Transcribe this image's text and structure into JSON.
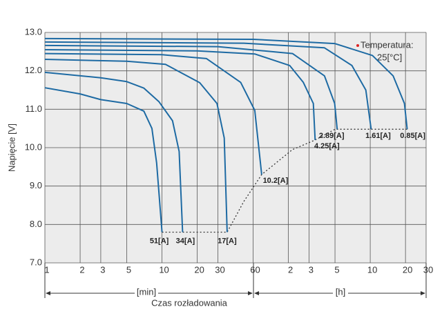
{
  "chart_data": {
    "type": "line",
    "x_label": "Czas rozładowania",
    "y_label": "Napięcie [V]",
    "x_unit_labels": [
      "[min]",
      "[h]"
    ],
    "annotations": [
      "Temperatura:",
      "25[°C]"
    ],
    "xscale": "log",
    "grid": true,
    "xlim": [
      1,
      1800
    ],
    "ylim": [
      7,
      13
    ],
    "xticks": [
      1,
      2,
      3,
      5,
      10,
      20,
      30,
      60,
      {
        "value": 120,
        "label": "2"
      },
      {
        "value": 180,
        "label": "3"
      },
      {
        "value": 300,
        "label": "5"
      },
      {
        "value": 600,
        "label": "10"
      },
      {
        "value": 1200,
        "label": "20"
      },
      {
        "value": 1800,
        "label": "30"
      }
    ],
    "yticks": [
      {
        "value": 7,
        "label": "7.0"
      },
      {
        "value": 8,
        "label": "8.0"
      },
      {
        "value": 9,
        "label": "9.0"
      },
      {
        "value": 10,
        "label": "10.0"
      },
      {
        "value": 11,
        "label": "11.0"
      },
      {
        "value": 12,
        "label": "12.0"
      },
      {
        "value": 13,
        "label": "13.0"
      }
    ],
    "series": [
      {
        "name": "51[A]",
        "color": "#1d6aa3",
        "x": [
          1,
          2,
          3,
          5,
          7,
          8.2,
          9,
          10
        ],
        "values": [
          11.56,
          11.4,
          11.25,
          11.15,
          10.95,
          10.5,
          9.6,
          7.8
        ]
      },
      {
        "name": "34[A]",
        "color": "#1d6aa3",
        "x": [
          1,
          3,
          5,
          7,
          9.4,
          12.3,
          14,
          15
        ],
        "values": [
          11.96,
          11.82,
          11.72,
          11.55,
          11.2,
          10.7,
          9.9,
          7.8
        ]
      },
      {
        "name": "17[A]",
        "color": "#1d6aa3",
        "x": [
          1,
          5,
          10.7,
          21,
          29.5,
          34,
          36
        ],
        "values": [
          12.3,
          12.25,
          12.17,
          11.69,
          11.15,
          10.25,
          7.8
        ]
      },
      {
        "name": "10.2[A]",
        "color": "#1d6aa3",
        "x": [
          1,
          10,
          24,
          47,
          62,
          71
        ],
        "values": [
          12.45,
          12.42,
          12.32,
          11.7,
          10.97,
          9.3
        ]
      },
      {
        "name": "4.25[A]",
        "color": "#1d6aa3",
        "x": [
          1,
          20,
          62,
          123,
          161,
          196,
          203
        ],
        "values": [
          12.55,
          12.52,
          12.44,
          12.14,
          11.7,
          11.15,
          10.2
        ]
      },
      {
        "name": "2.89[A]",
        "color": "#1d6aa3",
        "x": [
          1,
          30,
          130,
          244,
          298,
          313
        ],
        "values": [
          12.66,
          12.63,
          12.45,
          11.87,
          11.15,
          10.48
        ]
      },
      {
        "name": "1.61[A]",
        "color": "#1d6aa3",
        "x": [
          1,
          50,
          244,
          418,
          550,
          611
        ],
        "values": [
          12.75,
          12.72,
          12.6,
          12.14,
          11.5,
          10.48
        ]
      },
      {
        "name": "0.85[A]",
        "color": "#1d6aa3",
        "x": [
          1,
          60,
          298,
          627,
          940,
          1175,
          1240
        ],
        "values": [
          12.84,
          12.82,
          12.71,
          12.4,
          11.87,
          11.15,
          10.48
        ]
      }
    ],
    "end_line": {
      "color": "#333333",
      "x": [
        10,
        36,
        50,
        71,
        130,
        203,
        300,
        1240
      ],
      "values": [
        7.8,
        7.8,
        8.6,
        9.3,
        9.95,
        10.2,
        10.48,
        10.48
      ]
    }
  }
}
